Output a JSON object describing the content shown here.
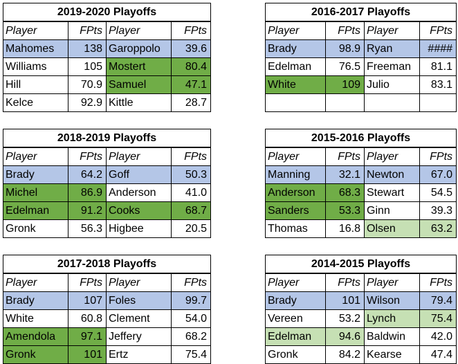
{
  "tables": [
    {
      "title": "2019-2020 Playoffs",
      "headers": [
        "Player",
        "FPts",
        "Player",
        "FPts"
      ],
      "rows": [
        [
          {
            "t": "Mahomes",
            "c": "blue"
          },
          {
            "t": "138",
            "c": "blue"
          },
          {
            "t": "Garoppolo",
            "c": "blue"
          },
          {
            "t": "39.6",
            "c": "blue"
          }
        ],
        [
          {
            "t": "Williams",
            "c": ""
          },
          {
            "t": "105",
            "c": ""
          },
          {
            "t": "Mostert",
            "c": "green"
          },
          {
            "t": "80.4",
            "c": "green"
          }
        ],
        [
          {
            "t": "Hill",
            "c": ""
          },
          {
            "t": "70.9",
            "c": ""
          },
          {
            "t": "Samuel",
            "c": "green"
          },
          {
            "t": "47.1",
            "c": "green"
          }
        ],
        [
          {
            "t": "Kelce",
            "c": ""
          },
          {
            "t": "92.9",
            "c": ""
          },
          {
            "t": "Kittle",
            "c": ""
          },
          {
            "t": "28.7",
            "c": ""
          }
        ]
      ]
    },
    {
      "title": "2016-2017 Playoffs",
      "headers": [
        "Player",
        "FPts",
        "Player",
        "FPts"
      ],
      "rows": [
        [
          {
            "t": "Brady",
            "c": "blue"
          },
          {
            "t": "98.9",
            "c": "blue"
          },
          {
            "t": "Ryan",
            "c": "blue"
          },
          {
            "t": "####",
            "c": "blue"
          }
        ],
        [
          {
            "t": "Edelman",
            "c": ""
          },
          {
            "t": "76.5",
            "c": ""
          },
          {
            "t": "Freeman",
            "c": ""
          },
          {
            "t": "81.1",
            "c": ""
          }
        ],
        [
          {
            "t": "White",
            "c": "green"
          },
          {
            "t": "109",
            "c": "green"
          },
          {
            "t": "Julio",
            "c": ""
          },
          {
            "t": "83.1",
            "c": ""
          }
        ],
        [
          {
            "t": "",
            "c": ""
          },
          {
            "t": "",
            "c": ""
          },
          {
            "t": "",
            "c": ""
          },
          {
            "t": "",
            "c": ""
          }
        ]
      ]
    },
    {
      "title": "2018-2019 Playoffs",
      "headers": [
        "Player",
        "FPts",
        "Player",
        "FPts"
      ],
      "rows": [
        [
          {
            "t": "Brady",
            "c": "blue"
          },
          {
            "t": "64.2",
            "c": "blue"
          },
          {
            "t": "Goff",
            "c": "blue"
          },
          {
            "t": "50.3",
            "c": "blue"
          }
        ],
        [
          {
            "t": "Michel",
            "c": "green"
          },
          {
            "t": "86.9",
            "c": "green"
          },
          {
            "t": "Anderson",
            "c": ""
          },
          {
            "t": "41.0",
            "c": ""
          }
        ],
        [
          {
            "t": "Edelman",
            "c": "green"
          },
          {
            "t": "91.2",
            "c": "green"
          },
          {
            "t": "Cooks",
            "c": "green"
          },
          {
            "t": "68.7",
            "c": "green"
          }
        ],
        [
          {
            "t": "Gronk",
            "c": ""
          },
          {
            "t": "56.3",
            "c": ""
          },
          {
            "t": "Higbee",
            "c": ""
          },
          {
            "t": "20.5",
            "c": ""
          }
        ]
      ]
    },
    {
      "title": "2015-2016 Playoffs",
      "headers": [
        "Player",
        "FPts",
        "Player",
        "FPts"
      ],
      "rows": [
        [
          {
            "t": "Manning",
            "c": "blue"
          },
          {
            "t": "32.1",
            "c": "blue"
          },
          {
            "t": "Newton",
            "c": "blue"
          },
          {
            "t": "67.0",
            "c": "blue"
          }
        ],
        [
          {
            "t": "Anderson",
            "c": "green"
          },
          {
            "t": "68.3",
            "c": "green"
          },
          {
            "t": "Stewart",
            "c": ""
          },
          {
            "t": "54.5",
            "c": ""
          }
        ],
        [
          {
            "t": "Sanders",
            "c": "green"
          },
          {
            "t": "53.3",
            "c": "green"
          },
          {
            "t": "Ginn",
            "c": ""
          },
          {
            "t": "39.3",
            "c": ""
          }
        ],
        [
          {
            "t": "Thomas",
            "c": ""
          },
          {
            "t": "16.8",
            "c": ""
          },
          {
            "t": "Olsen",
            "c": "lightgreen"
          },
          {
            "t": "63.2",
            "c": "lightgreen"
          }
        ]
      ]
    },
    {
      "title": "2017-2018 Playoffs",
      "headers": [
        "Player",
        "FPts",
        "Player",
        "FPts"
      ],
      "rows": [
        [
          {
            "t": "Brady",
            "c": "blue"
          },
          {
            "t": "107",
            "c": "blue"
          },
          {
            "t": "Foles",
            "c": "blue"
          },
          {
            "t": "99.7",
            "c": "blue"
          }
        ],
        [
          {
            "t": "White",
            "c": ""
          },
          {
            "t": "60.8",
            "c": ""
          },
          {
            "t": "Clement",
            "c": ""
          },
          {
            "t": "54.0",
            "c": ""
          }
        ],
        [
          {
            "t": "Amendola",
            "c": "green"
          },
          {
            "t": "97.1",
            "c": "green"
          },
          {
            "t": "Jeffery",
            "c": ""
          },
          {
            "t": "68.2",
            "c": ""
          }
        ],
        [
          {
            "t": "Gronk",
            "c": "green"
          },
          {
            "t": "101",
            "c": "green"
          },
          {
            "t": "Ertz",
            "c": ""
          },
          {
            "t": "75.4",
            "c": ""
          }
        ]
      ]
    },
    {
      "title": "2014-2015 Playoffs",
      "headers": [
        "Player",
        "FPts",
        "Player",
        "FPts"
      ],
      "rows": [
        [
          {
            "t": "Brady",
            "c": "blue"
          },
          {
            "t": "101",
            "c": "blue"
          },
          {
            "t": "Wilson",
            "c": "blue"
          },
          {
            "t": "79.4",
            "c": "blue"
          }
        ],
        [
          {
            "t": "Vereen",
            "c": ""
          },
          {
            "t": "53.2",
            "c": ""
          },
          {
            "t": "Lynch",
            "c": "lightgreen"
          },
          {
            "t": "75.4",
            "c": "lightgreen"
          }
        ],
        [
          {
            "t": "Edelman",
            "c": "lightgreen"
          },
          {
            "t": "94.6",
            "c": "lightgreen"
          },
          {
            "t": "Baldwin",
            "c": ""
          },
          {
            "t": "42.0",
            "c": ""
          }
        ],
        [
          {
            "t": "Gronk",
            "c": ""
          },
          {
            "t": "84.2",
            "c": ""
          },
          {
            "t": "Kearse",
            "c": ""
          },
          {
            "t": "47.4",
            "c": ""
          }
        ]
      ]
    }
  ],
  "colors": {
    "blue": "#b4c6e7",
    "green": "#70ad47",
    "lightgreen": "#c6e0b4"
  }
}
